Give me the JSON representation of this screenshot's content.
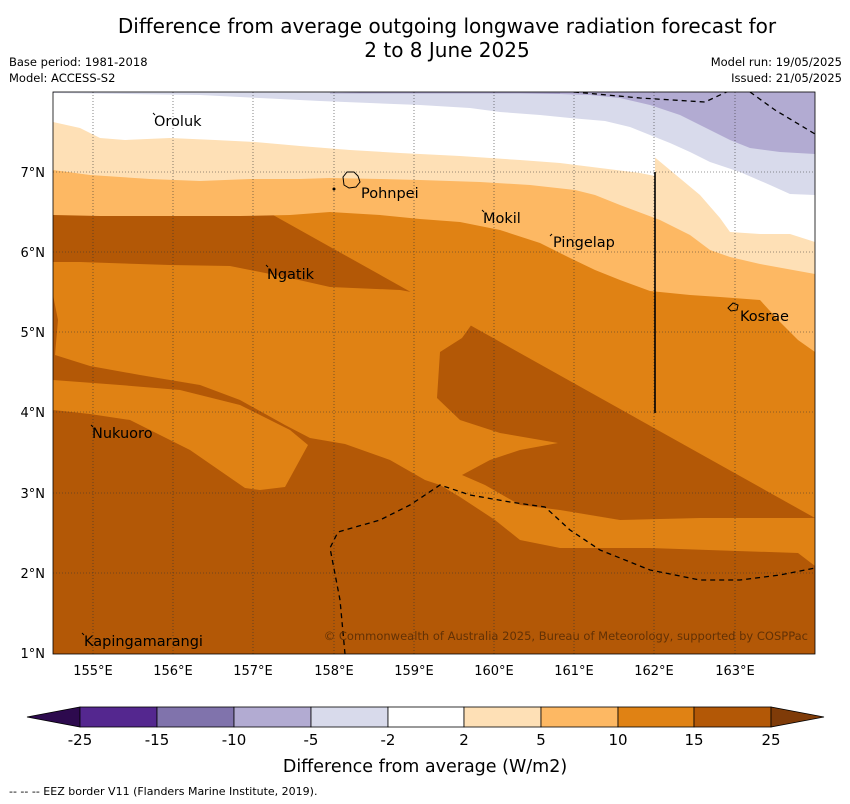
{
  "title_line1": "Difference from average outgoing longwave radiation forecast for",
  "title_line2": "2 to 8 June 2025",
  "meta": {
    "base_period": "Base period: 1981-2018",
    "model": "Model: ACCESS-S2",
    "model_run": "Model run: 19/05/2025",
    "issued": "Issued: 21/05/2025"
  },
  "copyright": "© Commonwealth of Australia 2025, Bureau of Meteorology, supported by COSPPac",
  "latitude_labels": [
    "7°N",
    "6°N",
    "5°N",
    "4°N",
    "3°N",
    "2°N",
    "1°N"
  ],
  "longitude_labels": [
    "155°E",
    "156°E",
    "157°E",
    "158°E",
    "159°E",
    "160°E",
    "161°E",
    "162°E",
    "163°E"
  ],
  "places": [
    "Oroluk",
    "Pohnpei",
    "Mokil",
    "Pingelap",
    "Ngatik",
    "Kosrae",
    "Nukuoro",
    "Kapingamarangi"
  ],
  "legend": {
    "title": "Difference from average (W/m2)",
    "ticks": [
      "-25",
      "-15",
      "-10",
      "-5",
      "-2",
      "2",
      "5",
      "10",
      "15",
      "25"
    ],
    "colors": [
      "#2d0a4e",
      "#54278f",
      "#8073ac",
      "#b2abd2",
      "#d8daeb",
      "#ffffff",
      "#fee0b6",
      "#fdb863",
      "#e08214",
      "#b35806",
      "#7f3b08"
    ]
  },
  "eez_note": "-- -- -- EEZ border V11 (Flanders Marine Institute, 2019)."
}
